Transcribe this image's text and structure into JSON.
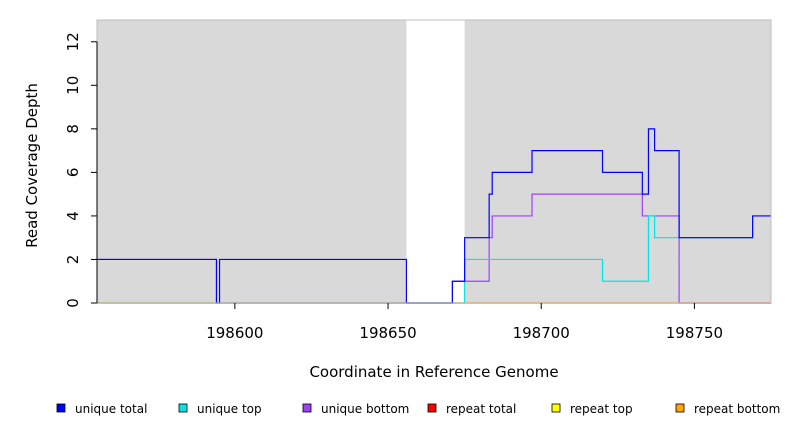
{
  "chart_data": {
    "type": "line",
    "xlabel": "Coordinate in Reference Genome",
    "ylabel": "Read Coverage Depth",
    "xlim": [
      198555,
      198775
    ],
    "ylim": [
      0,
      13
    ],
    "x_ticks": [
      198600,
      198650,
      198700,
      198750
    ],
    "y_ticks": [
      0,
      2,
      4,
      6,
      8,
      10,
      12
    ],
    "shaded_regions": [
      [
        198555,
        198656
      ],
      [
        198675,
        198775
      ]
    ],
    "legend_position": "bottom",
    "series": [
      {
        "name": "unique total",
        "color": "#0000ff",
        "x": [
          198555,
          198594,
          198594,
          198595,
          198595,
          198656,
          198656,
          198671,
          198671,
          198675,
          198675,
          198683,
          198683,
          198684,
          198684,
          198697,
          198697,
          198720,
          198720,
          198733,
          198733,
          198735,
          198735,
          198737,
          198737,
          198745,
          198745,
          198769,
          198769,
          198775
        ],
        "y": [
          2,
          2,
          0,
          0,
          2,
          2,
          0,
          0,
          1,
          1,
          3,
          3,
          5,
          5,
          6,
          6,
          7,
          7,
          6,
          6,
          5,
          5,
          8,
          8,
          7,
          7,
          3,
          3,
          4,
          4
        ]
      },
      {
        "name": "unique top",
        "color": "#00e5e5",
        "x": [
          198555,
          198675,
          198675,
          198720,
          198720,
          198735,
          198735,
          198737,
          198737,
          198745,
          198745,
          198769,
          198769,
          198775
        ],
        "y": [
          0,
          0,
          2,
          2,
          1,
          1,
          4,
          4,
          3,
          3,
          3,
          3,
          4,
          4
        ]
      },
      {
        "name": "unique bottom",
        "color": "#a040ff",
        "x": [
          198555,
          198594,
          198594,
          198671,
          198671,
          198683,
          198683,
          198684,
          198684,
          198697,
          198697,
          198733,
          198733,
          198745,
          198745,
          198775
        ],
        "y": [
          2,
          2,
          0,
          0,
          1,
          1,
          3,
          3,
          4,
          4,
          5,
          5,
          4,
          4,
          0,
          0
        ]
      },
      {
        "name": "repeat total",
        "color": "#ff0000",
        "x": [
          198555,
          198775
        ],
        "y": [
          0,
          0
        ]
      },
      {
        "name": "repeat top",
        "color": "#ffff00",
        "x": [
          198555,
          198775
        ],
        "y": [
          0,
          0
        ]
      },
      {
        "name": "repeat bottom",
        "color": "#ffa500",
        "x": [
          198555,
          198775
        ],
        "y": [
          0,
          0
        ]
      }
    ]
  }
}
